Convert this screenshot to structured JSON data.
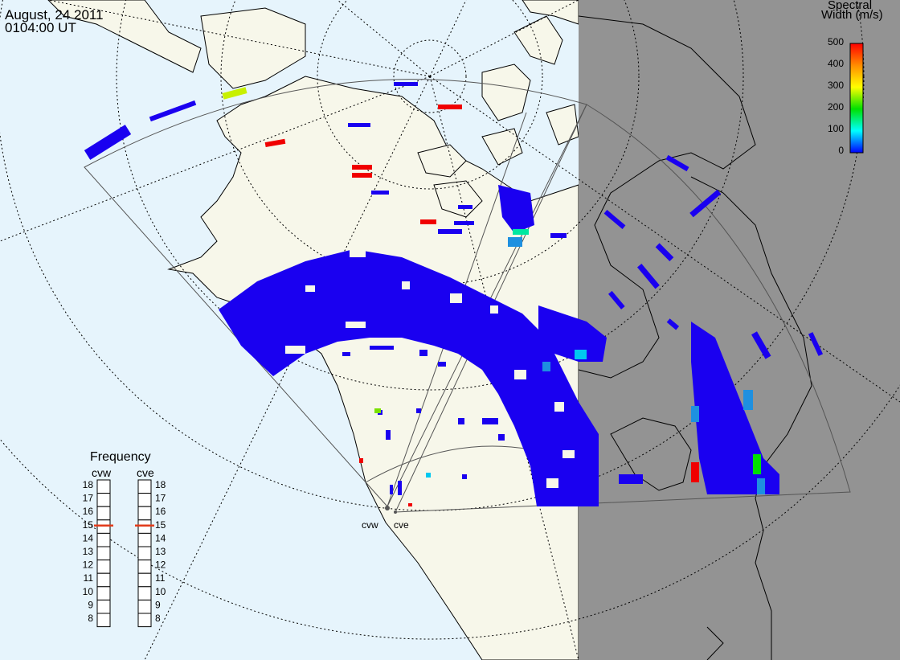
{
  "header": {
    "date": "August, 24 2011",
    "time": "0104:00 UT"
  },
  "colorbar": {
    "title_line1": "Spectral",
    "title_line2": "Width (m/s)",
    "ticks": [
      "500",
      "400",
      "300",
      "200",
      "100",
      "0"
    ],
    "stops": [
      "#ff0000",
      "#ff8c00",
      "#ffff00",
      "#00e000",
      "#00ffff",
      "#0000ff"
    ]
  },
  "frequency": {
    "title": "Frequency",
    "radar_left": "cvw",
    "radar_right": "cve",
    "scale": [
      "18",
      "17",
      "16",
      "15",
      "14",
      "13",
      "12",
      "11",
      "10",
      "9",
      "8"
    ],
    "left_value": 15,
    "right_value": 15
  },
  "sites": {
    "left": "cvw",
    "right": "cve"
  },
  "colors": {
    "ocean": "#e6f4fc",
    "land": "#f7f7ea",
    "night": "#939393",
    "scatter": "#1a00f0",
    "marker": "#e23b1a"
  }
}
